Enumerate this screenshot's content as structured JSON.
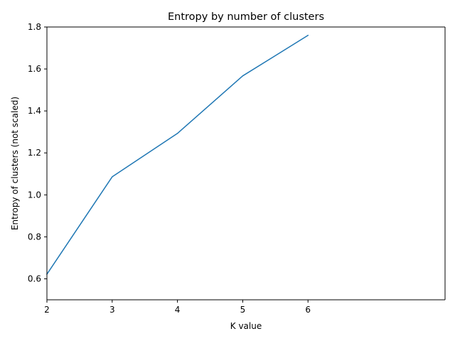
{
  "chart_data": {
    "type": "line",
    "title": "Entropy by number of clusters",
    "xlabel": "K value",
    "ylabel": "Entropy of clusters (not scaled)",
    "x": [
      2,
      3,
      4,
      5,
      6
    ],
    "series": [
      {
        "values": [
          0.622,
          1.086,
          1.293,
          1.567,
          1.76
        ]
      }
    ],
    "xlim": [
      2,
      8.1
    ],
    "ylim": [
      0.5,
      1.8
    ],
    "xticks": [
      "2",
      "3",
      "4",
      "5",
      "6"
    ],
    "yticks": [
      "0.6",
      "0.8",
      "1.0",
      "1.2",
      "1.4",
      "1.6",
      "1.8"
    ],
    "grid": false,
    "colors": {
      "line": "#1f77b4",
      "axes": "#000000",
      "background": "#ffffff"
    }
  }
}
